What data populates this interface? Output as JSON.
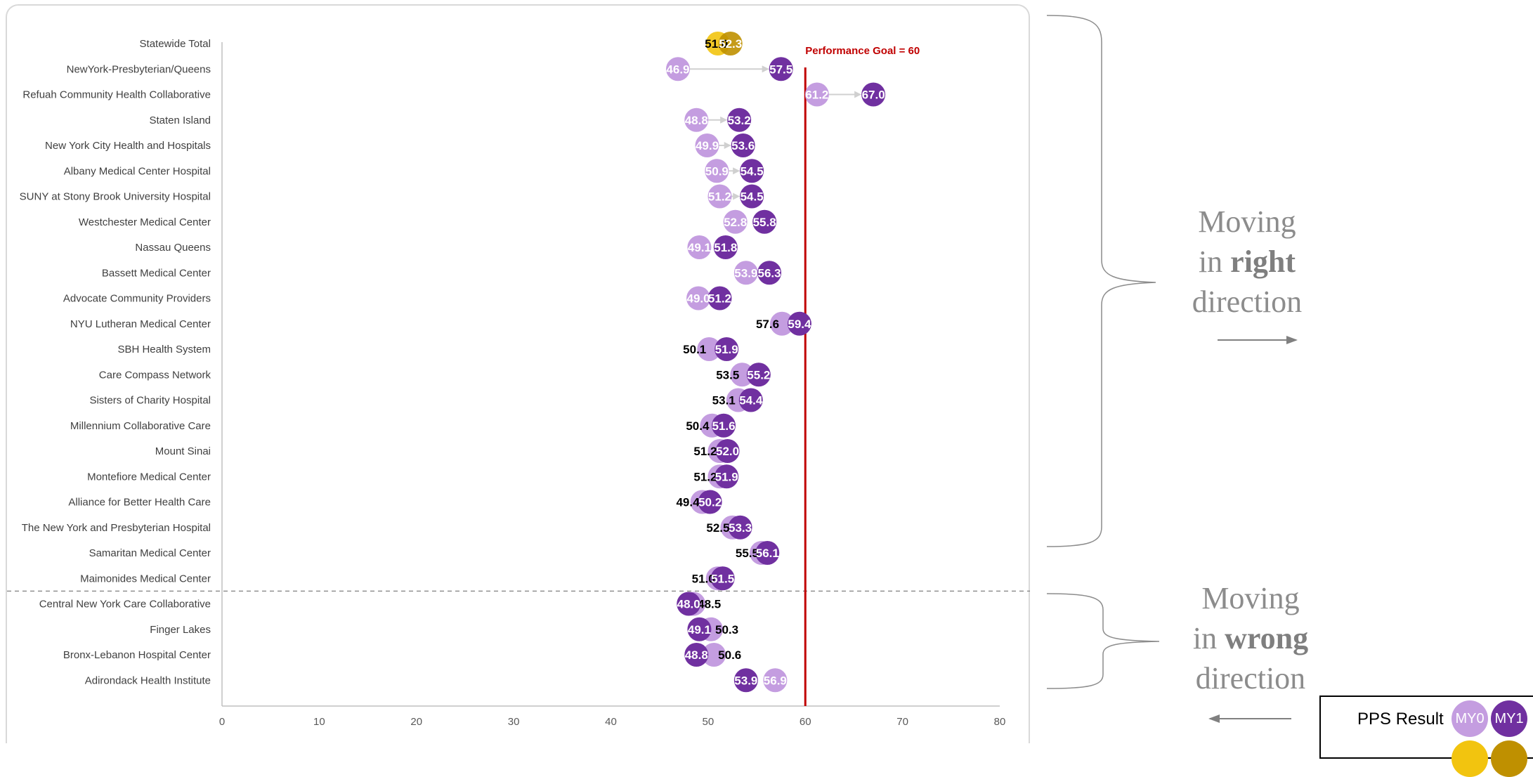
{
  "chart_data": {
    "type": "scatter",
    "x_axis": {
      "min": 0,
      "max": 80,
      "ticks": [
        0,
        10,
        20,
        30,
        40,
        50,
        60,
        70,
        80
      ]
    },
    "goal": {
      "value": 60,
      "label": "Performance Goal = 60"
    },
    "colors": {
      "my0": "#c49de0",
      "my1": "#7030a0",
      "statewide_my0": "#f2c40f",
      "statewide_my1": "#bf9000",
      "goal_line": "#c00000",
      "arrow": "#d0d0d0"
    },
    "rows": [
      {
        "name": "Statewide Total",
        "my0": 51.0,
        "my1": 52.3,
        "my0_text": "51.0",
        "my1_text": "52.3",
        "statewide": true
      },
      {
        "name": "NewYork-Presbyterian/Queens",
        "my0": 46.9,
        "my1": 57.5,
        "my0_text": "46.9",
        "my1_text": "57.5",
        "arrow": true
      },
      {
        "name": "Refuah Community Health Collaborative",
        "my0": 61.2,
        "my1": 67.0,
        "my0_text": "61.2",
        "my1_text": "67.0",
        "arrow": true
      },
      {
        "name": "Staten Island",
        "my0": 48.8,
        "my1": 53.2,
        "my0_text": "48.8",
        "my1_text": "53.2",
        "arrow": true
      },
      {
        "name": "New York City Health and Hospitals",
        "my0": 49.9,
        "my1": 53.6,
        "my0_text": "49.9",
        "my1_text": "53.6",
        "arrow": true
      },
      {
        "name": "Albany Medical Center Hospital",
        "my0": 50.9,
        "my1": 54.5,
        "my0_text": "50.9",
        "my1_text": "54.5",
        "arrow": true
      },
      {
        "name": "SUNY at Stony Brook University Hospital",
        "my0": 51.2,
        "my1": 54.5,
        "my0_text": "51.2",
        "my1_text": "54.5",
        "arrow": true
      },
      {
        "name": "Westchester Medical Center",
        "my0": 52.8,
        "my1": 55.8,
        "my0_text": "52.8",
        "my1_text": "55.8"
      },
      {
        "name": "Nassau Queens",
        "my0": 49.1,
        "my1": 51.8,
        "my0_text": "49.1",
        "my1_text": "51.8"
      },
      {
        "name": "Bassett Medical Center",
        "my0": 53.9,
        "my1": 56.3,
        "my0_text": "53.9",
        "my1_text": "56.3"
      },
      {
        "name": "Advocate Community Providers",
        "my0": 49.0,
        "my1": 51.2,
        "my0_text": "49.0",
        "my1_text": "51.2"
      },
      {
        "name": "NYU Lutheran Medical Center",
        "my0": 57.6,
        "my1": 59.4,
        "my0_text": "57.6",
        "my1_text": "59.4",
        "my0_outside": true
      },
      {
        "name": "SBH Health System",
        "my0": 50.1,
        "my1": 51.9,
        "my0_text": "50.1",
        "my1_text": "51.9",
        "my0_outside": true
      },
      {
        "name": "Care Compass Network",
        "my0": 53.5,
        "my1": 55.2,
        "my0_text": "53.5",
        "my1_text": "55.2",
        "my0_outside": true
      },
      {
        "name": "Sisters of Charity Hospital",
        "my0": 53.1,
        "my1": 54.4,
        "my0_text": "53.1",
        "my1_text": "54.4",
        "my0_outside": true
      },
      {
        "name": "Millennium Collaborative Care",
        "my0": 50.4,
        "my1": 51.6,
        "my0_text": "50.4",
        "my1_text": "51.6",
        "my0_outside": true
      },
      {
        "name": "Mount Sinai",
        "my0": 51.2,
        "my1": 52.0,
        "my0_text": "51.2",
        "my1_text": "52.0",
        "my0_outside": true
      },
      {
        "name": "Montefiore Medical Center",
        "my0": 51.2,
        "my1": 51.9,
        "my0_text": "51.2",
        "my1_text": "51.9",
        "my0_outside": true
      },
      {
        "name": "Alliance for Better Health Care",
        "my0": 49.4,
        "my1": 50.2,
        "my0_text": "49.4",
        "my1_text": "50.2",
        "my0_outside": true
      },
      {
        "name": "The New York and Presbyterian Hospital",
        "my0": 52.5,
        "my1": 53.3,
        "my0_text": "52.5",
        "my1_text": "53.3",
        "my0_outside": true
      },
      {
        "name": "Samaritan Medical Center",
        "my0": 55.5,
        "my1": 56.1,
        "my0_text": "55.5",
        "my1_text": "56.1",
        "my0_outside": true
      },
      {
        "name": "Maimonides Medical Center",
        "my0": 51.0,
        "my1": 51.5,
        "my0_text": "51.0",
        "my1_text": "51.5",
        "my0_outside": true
      },
      {
        "name": "Central New York Care Collaborative",
        "my0": 48.5,
        "my1": 48.0,
        "my0_text": "48.5",
        "my1_text": "48.0",
        "my0_outside": true
      },
      {
        "name": "Finger Lakes",
        "my0": 50.3,
        "my1": 49.1,
        "my0_text": "50.3",
        "my1_text": "49.1",
        "my0_outside": true
      },
      {
        "name": "Bronx-Lebanon Hospital Center",
        "my0": 50.6,
        "my1": 48.8,
        "my0_text": "50.6",
        "my1_text": "48.8",
        "my0_outside": true
      },
      {
        "name": "Adirondack Health Institute",
        "my0": 56.9,
        "my1": 53.9,
        "my0_text": "56.9",
        "my1_text": "53.9"
      }
    ],
    "annotations": {
      "right": {
        "line1": "Moving",
        "line2_pre": "in ",
        "line2_bold": "right",
        "line3": "direction"
      },
      "wrong": {
        "line1": "Moving",
        "line2_pre": "in ",
        "line2_bold": "wrong",
        "line3": "direction"
      }
    },
    "legend": {
      "label": "PPS Result",
      "my0": "MY0",
      "my1": "MY1"
    }
  }
}
